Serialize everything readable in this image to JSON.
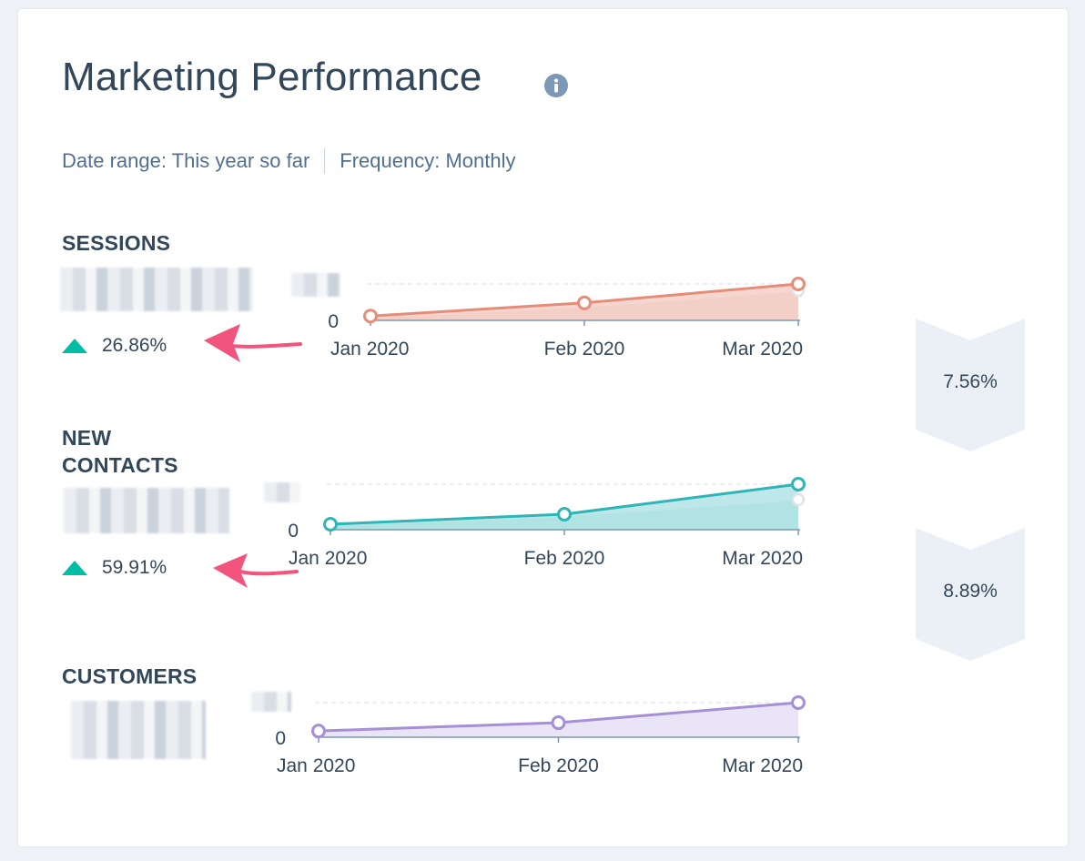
{
  "page": {
    "title": "Marketing Performance",
    "filters": {
      "date_range": "Date range: This year so far",
      "frequency": "Frequency: Monthly"
    }
  },
  "metrics": [
    {
      "label": "SESSIONS",
      "change": "26.86%",
      "direction": "up",
      "color": "#e68d7a",
      "fill_color": "#f2c9c0"
    },
    {
      "label_lines": [
        "NEW",
        "CONTACTS"
      ],
      "change": "59.91%",
      "direction": "up",
      "color": "#2fb5b5",
      "fill_color": "#a7dfe0"
    },
    {
      "label": "CUSTOMERS",
      "color": "#a58fd6",
      "fill_color": "#e3dcf3"
    }
  ],
  "conversion_rates": [
    "7.56%",
    "8.89%"
  ],
  "chart_data": [
    {
      "type": "area",
      "metric": "SESSIONS",
      "x": [
        "Jan 2020",
        "Feb 2020",
        "Mar 2020"
      ],
      "y_tick_labels": [
        "0"
      ],
      "series": [
        {
          "values": [
            0.12,
            0.48,
            1.0
          ]
        },
        {
          "values": [
            0.1,
            0.38,
            0.82
          ]
        }
      ]
    },
    {
      "type": "area",
      "metric": "NEW CONTACTS",
      "x": [
        "Jan 2020",
        "Feb 2020",
        "Mar 2020"
      ],
      "y_tick_labels": [
        "0"
      ],
      "series": [
        {
          "values": [
            0.12,
            0.34,
            1.0
          ]
        },
        {
          "values": [
            0.1,
            0.3,
            0.66
          ]
        }
      ]
    },
    {
      "type": "area",
      "metric": "CUSTOMERS",
      "x": [
        "Jan 2020",
        "Feb 2020",
        "Mar 2020"
      ],
      "y_tick_labels": [
        "0"
      ],
      "series": [
        {
          "values": [
            0.18,
            0.42,
            1.0
          ]
        }
      ]
    }
  ],
  "icons": {
    "info": "info-icon",
    "increase": "triangle-up-icon",
    "annotation": "arrow-left-icon"
  },
  "colors": {
    "increase": "#00bda5",
    "annotation_arrow": "#f2547d",
    "funnel": "#eaf0f6"
  }
}
